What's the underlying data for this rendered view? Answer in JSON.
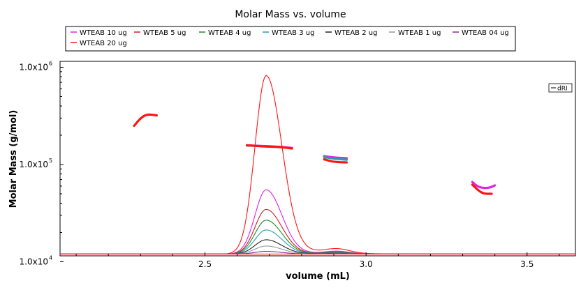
{
  "chart_data": {
    "type": "line",
    "title": "Molar Mass vs. volume",
    "xlabel": "volume (mL)",
    "ylabel": "Molar Mass (g/mol)",
    "y_scale": "log",
    "xlim": [
      2.05,
      3.65
    ],
    "ylim": [
      11500,
      1150000
    ],
    "x_ticks": [
      2.5,
      3.0,
      3.5
    ],
    "x_tick_labels": [
      "2.5",
      "3.0",
      "3.5"
    ],
    "y_ticks": [
      10000,
      100000,
      1000000
    ],
    "y_tick_labels": [
      {
        "base": "1.0x10",
        "exp": "4"
      },
      {
        "base": "1.0x10",
        "exp": "5"
      },
      {
        "base": "1.0x10",
        "exp": "6"
      }
    ],
    "legend_position": "top",
    "right_legend_label": "dRI",
    "series": [
      {
        "name": "WTEAB 10 ug",
        "color": "#e61ee6",
        "peak_scale": 0.36,
        "mass_segments": [
          {
            "x": [
              2.63,
              2.68,
              2.73,
              2.77
            ],
            "y": [
              157000,
              155000,
              152000,
              148000
            ]
          },
          {
            "x": [
              2.87,
              2.9,
              2.94
            ],
            "y": [
              122000,
              118000,
              116000
            ]
          },
          {
            "x": [
              3.33,
              3.35,
              3.38,
              3.4
            ],
            "y": [
              66000,
              58000,
              57000,
              61000
            ]
          }
        ]
      },
      {
        "name": "WTEAB 5 ug",
        "color": "#cc2020",
        "peak_scale": 0.25,
        "mass_segments": []
      },
      {
        "name": "WTEAB 4 ug",
        "color": "#1f8a2a",
        "peak_scale": 0.19,
        "mass_segments": []
      },
      {
        "name": "WTEAB 3 ug",
        "color": "#2a9bb5",
        "peak_scale": 0.135,
        "mass_segments": [
          {
            "x": [
              2.63,
              2.68,
              2.73
            ],
            "y": [
              157000,
              154000,
              151000
            ]
          },
          {
            "x": [
              2.87,
              2.9,
              2.94
            ],
            "y": [
              119000,
              115000,
              112000
            ]
          }
        ]
      },
      {
        "name": "WTEAB 2 ug",
        "color": "#222222",
        "peak_scale": 0.08,
        "mass_segments": []
      },
      {
        "name": "WTEAB 1 ug",
        "color": "#999999",
        "peak_scale": 0.045,
        "mass_segments": []
      },
      {
        "name": "WTEAB 04 ug",
        "color": "#8a2a9b",
        "peak_scale": 0.015,
        "mass_segments": []
      },
      {
        "name": "WTEAB 20 ug",
        "color": "#ff1414",
        "peak_scale": 1.0,
        "mass_segments": [
          {
            "x": [
              2.28,
              2.3,
              2.32,
              2.35
            ],
            "y": [
              250000,
              300000,
              330000,
              320000
            ]
          },
          {
            "x": [
              2.63,
              2.68,
              2.73,
              2.77
            ],
            "y": [
              158000,
              153000,
              152000,
              146000
            ]
          },
          {
            "x": [
              2.87,
              2.9,
              2.94
            ],
            "y": [
              113000,
              106000,
              105000
            ]
          },
          {
            "x": [
              3.33,
              3.36,
              3.39
            ],
            "y": [
              62000,
              50000,
              50000
            ]
          }
        ]
      }
    ],
    "dri_trace": {
      "baseline_y": 12000,
      "peak_x": 2.69,
      "peak_y_max": 820000,
      "shoulder_x": 2.91,
      "shoulder_y_max": 13300
    }
  }
}
